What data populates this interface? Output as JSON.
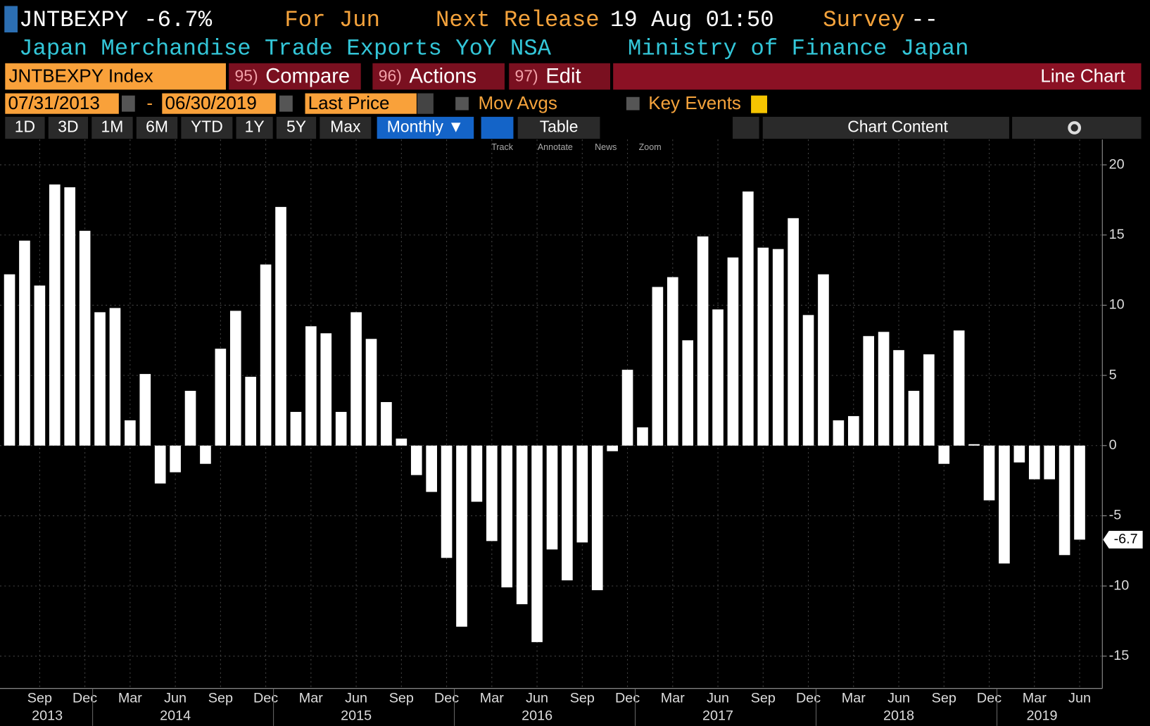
{
  "header": {
    "ticker": "JNTBEXPY",
    "change": "-6.7%",
    "for_label": "For Jun",
    "next_release_label": "Next Release",
    "next_release": "19 Aug 01:50",
    "survey_label": "Survey",
    "survey": "--",
    "description": "Japan Merchandise Trade Exports YoY NSA",
    "source": "Ministry of Finance Japan"
  },
  "toolbar": {
    "security": "JNTBEXPY Index",
    "menus": [
      {
        "num": "95)",
        "label": "Compare"
      },
      {
        "num": "96)",
        "label": "Actions"
      },
      {
        "num": "97)",
        "label": "Edit"
      }
    ],
    "chart_kind": "Line Chart",
    "start_date": "07/31/2013",
    "date_sep": "-",
    "end_date": "06/30/2019",
    "field": "Last Price",
    "mov_avgs": "Mov Avgs",
    "key_events": "Key Events",
    "periods": [
      "1D",
      "3D",
      "1M",
      "6M",
      "YTD",
      "1Y",
      "5Y",
      "Max"
    ],
    "frequency": "Monthly ▼",
    "table": "Table",
    "chart_content": "Chart Content",
    "tools": [
      "Track",
      "Annotate",
      "News",
      "Zoom"
    ]
  },
  "chart_data": {
    "type": "bar",
    "color": "#ffffff",
    "grid": true,
    "categories": [
      null,
      null,
      "Sep",
      null,
      null,
      "Dec",
      null,
      null,
      "Mar",
      null,
      null,
      "Jun",
      null,
      null,
      "Sep",
      null,
      null,
      "Dec",
      null,
      null,
      "Mar",
      null,
      null,
      "Jun",
      null,
      null,
      "Sep",
      null,
      null,
      "Dec",
      null,
      null,
      "Mar",
      null,
      null,
      "Jun",
      null,
      null,
      "Sep",
      null,
      null,
      "Dec",
      null,
      null,
      "Mar",
      null,
      null,
      "Jun",
      null,
      null,
      "Sep",
      null,
      null,
      "Dec",
      null,
      null,
      "Mar",
      null,
      null,
      "Jun",
      null,
      null,
      "Sep",
      null,
      null,
      "Dec",
      null,
      null,
      "Mar",
      null,
      null,
      "Jun"
    ],
    "years": [
      2013,
      2014,
      2015,
      2016,
      2017,
      2018,
      2019
    ],
    "values": [
      12.2,
      14.6,
      11.4,
      18.6,
      18.4,
      15.3,
      9.5,
      9.8,
      1.8,
      5.1,
      -2.7,
      -1.9,
      3.9,
      -1.3,
      6.9,
      9.6,
      4.9,
      12.9,
      17.0,
      2.4,
      8.5,
      8.0,
      2.4,
      9.5,
      7.6,
      3.1,
      0.5,
      -2.1,
      -3.3,
      -8.0,
      -12.9,
      -4.0,
      -6.8,
      -10.1,
      -11.3,
      -14.0,
      -7.4,
      -9.6,
      -6.9,
      -10.3,
      -0.4,
      5.4,
      1.3,
      11.3,
      12.0,
      7.5,
      14.9,
      9.7,
      13.4,
      18.1,
      14.1,
      14.0,
      16.2,
      9.3,
      12.2,
      1.8,
      2.1,
      7.8,
      8.1,
      6.8,
      3.9,
      6.5,
      -1.3,
      8.2,
      0.1,
      -3.9,
      -8.4,
      -1.2,
      -2.4,
      -2.4,
      -7.8,
      -6.7
    ],
    "ylim": [
      -17.3,
      21.8
    ],
    "yticks": [
      -15,
      -10,
      -5,
      0,
      5,
      10,
      15,
      20
    ]
  }
}
